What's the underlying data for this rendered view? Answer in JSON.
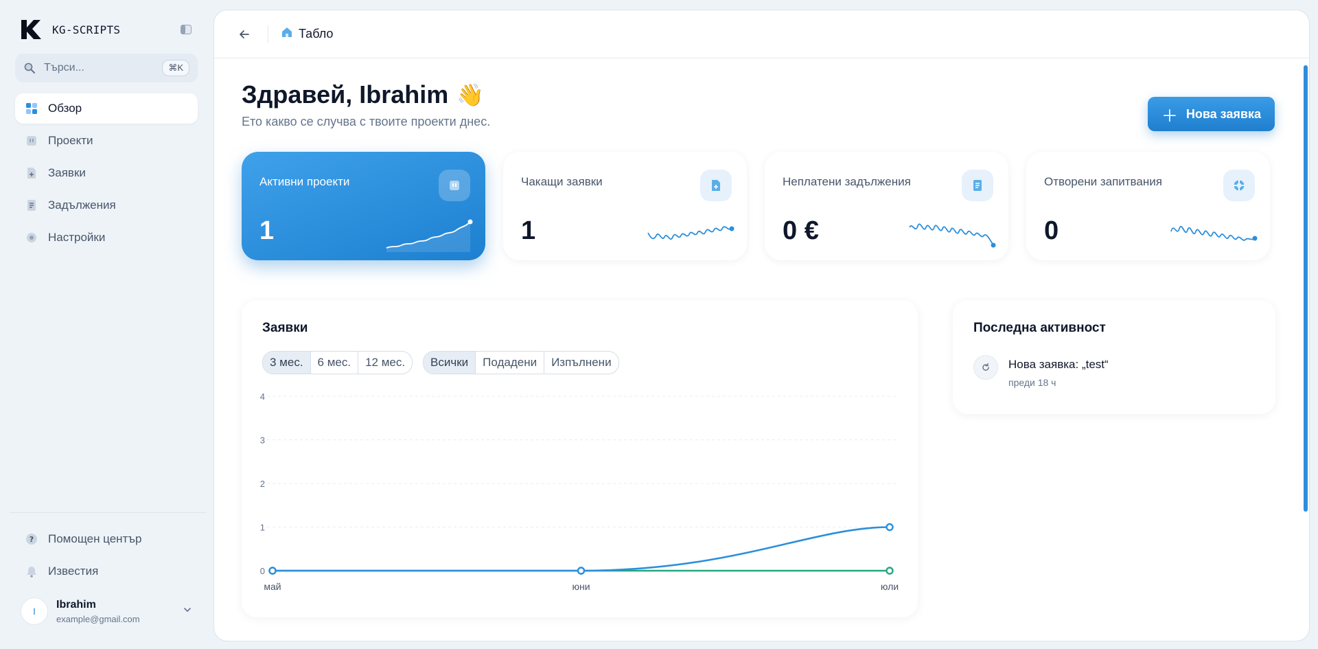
{
  "brand": {
    "name": "KG-SCRIPTS"
  },
  "search": {
    "placeholder": "Търси...",
    "shortcut": "⌘K"
  },
  "sidebar": {
    "items": [
      {
        "label": "Обзор",
        "icon": "dashboard-icon",
        "active": true
      },
      {
        "label": "Проекти",
        "icon": "folder-icon",
        "active": false
      },
      {
        "label": "Заявки",
        "icon": "file-plus-icon",
        "active": false
      },
      {
        "label": "Задължения",
        "icon": "receipt-icon",
        "active": false
      },
      {
        "label": "Настройки",
        "icon": "gear-icon",
        "active": false
      }
    ],
    "bottom_items": [
      {
        "label": "Помощен център",
        "icon": "help-icon"
      },
      {
        "label": "Известия",
        "icon": "bell-icon"
      }
    ]
  },
  "user": {
    "initial": "I",
    "name": "Ibrahim",
    "email": "example@gmail.com"
  },
  "header": {
    "breadcrumb": "Табло"
  },
  "greeting": {
    "title": "Здравей, Ibrahim",
    "emoji": "👋",
    "subtitle": "Ето какво се случва с твоите проекти днес."
  },
  "actions": {
    "new_request": "Нова заявка"
  },
  "stats": [
    {
      "label": "Активни проекти",
      "value": "1",
      "icon": "folder-icon",
      "active": true
    },
    {
      "label": "Чакащи заявки",
      "value": "1",
      "icon": "file-plus-icon",
      "active": false
    },
    {
      "label": "Неплатени задължения",
      "value": "0 €",
      "icon": "receipt-icon",
      "active": false
    },
    {
      "label": "Отворени запитвания",
      "value": "0",
      "icon": "lifebuoy-icon",
      "active": false
    }
  ],
  "requests_chart": {
    "title": "Заявки",
    "period_options": [
      "3 мес.",
      "6 мес.",
      "12 мес."
    ],
    "period_selected": "3 мес.",
    "filter_options": [
      "Всички",
      "Подадени",
      "Изпълнени"
    ],
    "filter_selected": "Всички"
  },
  "chart_data": {
    "type": "line",
    "categories": [
      "май",
      "юни",
      "юли"
    ],
    "series": [
      {
        "values": [
          0,
          0,
          1
        ],
        "color": "#2b8fdb"
      },
      {
        "values": [
          0,
          0,
          0
        ],
        "color": "#22a77f"
      }
    ],
    "yticks": [
      "0",
      "1",
      "2",
      "3",
      "4"
    ],
    "ylim": [
      0,
      4
    ],
    "grid": true
  },
  "activity": {
    "title": "Последна активност",
    "items": [
      {
        "text": "Нова заявка: „test“",
        "time": "преди 18 ч",
        "icon": "refresh-icon"
      }
    ]
  },
  "colors": {
    "accent": "#2b8fdb",
    "accent_dark": "#1d80d0",
    "secondary_line": "#22a77f",
    "background": "#eef3f8"
  }
}
